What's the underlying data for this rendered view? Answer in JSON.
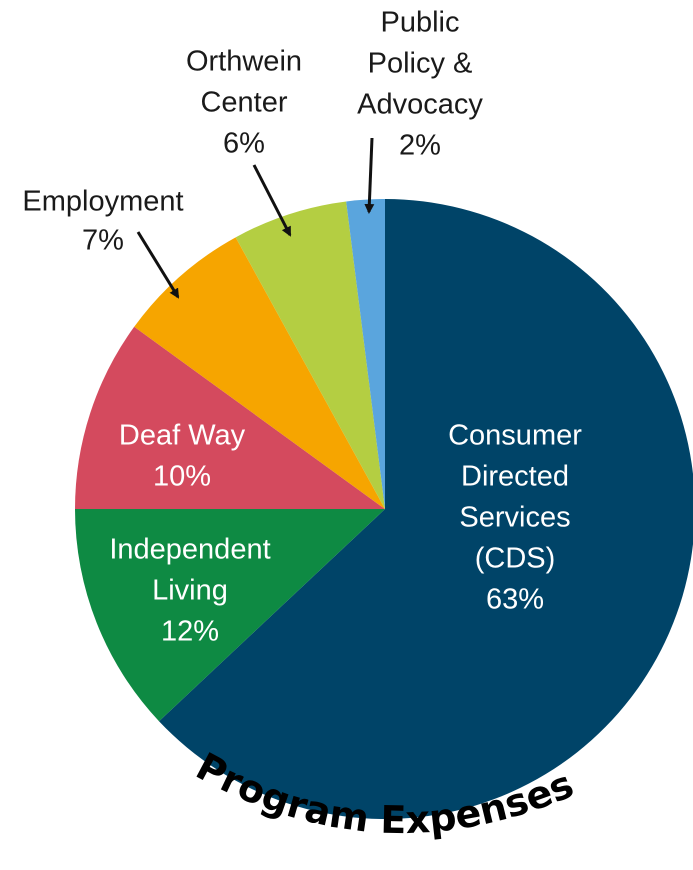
{
  "chart_data": {
    "type": "pie",
    "title": "Program Expenses",
    "slices": [
      {
        "label": [
          "Consumer",
          "Directed",
          "Services",
          "(CDS)"
        ],
        "value": 63,
        "value_label": "63%",
        "color": "#004468"
      },
      {
        "label": [
          "Independent",
          "Living"
        ],
        "value": 12,
        "value_label": "12%",
        "color": "#0e8a43"
      },
      {
        "label": [
          "Deaf Way"
        ],
        "value": 10,
        "value_label": "10%",
        "color": "#d44a5e"
      },
      {
        "label": [
          "Employment"
        ],
        "value": 7,
        "value_label": "7%",
        "color": "#f6a500"
      },
      {
        "label": [
          "Orthwein",
          "Center"
        ],
        "value": 6,
        "value_label": "6%",
        "color": "#b4ce42"
      },
      {
        "label": [
          "Public",
          "Policy &",
          "Advocacy"
        ],
        "value": 2,
        "value_label": "2%",
        "color": "#5aa5dd"
      }
    ],
    "start": "12 o'clock",
    "direction": "clockwise",
    "legend": "none"
  }
}
